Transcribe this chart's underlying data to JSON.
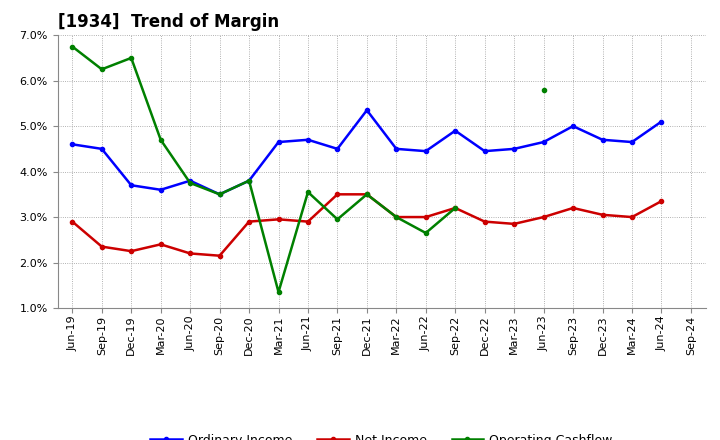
{
  "title": "[1934]  Trend of Margin",
  "labels": [
    "Jun-19",
    "Sep-19",
    "Dec-19",
    "Mar-20",
    "Jun-20",
    "Sep-20",
    "Dec-20",
    "Mar-21",
    "Jun-21",
    "Sep-21",
    "Dec-21",
    "Mar-22",
    "Jun-22",
    "Sep-22",
    "Dec-22",
    "Mar-23",
    "Jun-23",
    "Sep-23",
    "Dec-23",
    "Mar-24",
    "Jun-24",
    "Sep-24"
  ],
  "ordinary_income": [
    4.6,
    4.5,
    3.7,
    3.6,
    3.8,
    3.5,
    3.8,
    4.65,
    4.7,
    4.5,
    5.35,
    4.5,
    4.45,
    4.9,
    4.45,
    4.5,
    4.65,
    5.0,
    4.7,
    4.65,
    5.1,
    null
  ],
  "net_income": [
    2.9,
    2.35,
    2.25,
    2.4,
    2.2,
    2.15,
    2.9,
    2.95,
    2.9,
    3.5,
    3.5,
    3.0,
    3.0,
    3.2,
    2.9,
    2.85,
    3.0,
    3.2,
    3.05,
    3.0,
    3.35,
    null
  ],
  "operating_cashflow": [
    6.75,
    6.25,
    6.5,
    4.7,
    3.75,
    3.5,
    3.8,
    1.35,
    3.55,
    2.95,
    3.5,
    3.0,
    2.65,
    3.2,
    null,
    null,
    5.8,
    null,
    null,
    null,
    null,
    null
  ],
  "ylim": [
    1.0,
    7.0
  ],
  "yticks": [
    1.0,
    2.0,
    3.0,
    4.0,
    5.0,
    6.0,
    7.0
  ],
  "line_colors": {
    "ordinary_income": "#0000FF",
    "net_income": "#CC0000",
    "operating_cashflow": "#008000"
  },
  "background_color": "#FFFFFF",
  "grid_color": "#999999",
  "title_fontsize": 12,
  "tick_fontsize": 8,
  "legend_fontsize": 9,
  "linewidth": 1.8,
  "markersize": 3
}
